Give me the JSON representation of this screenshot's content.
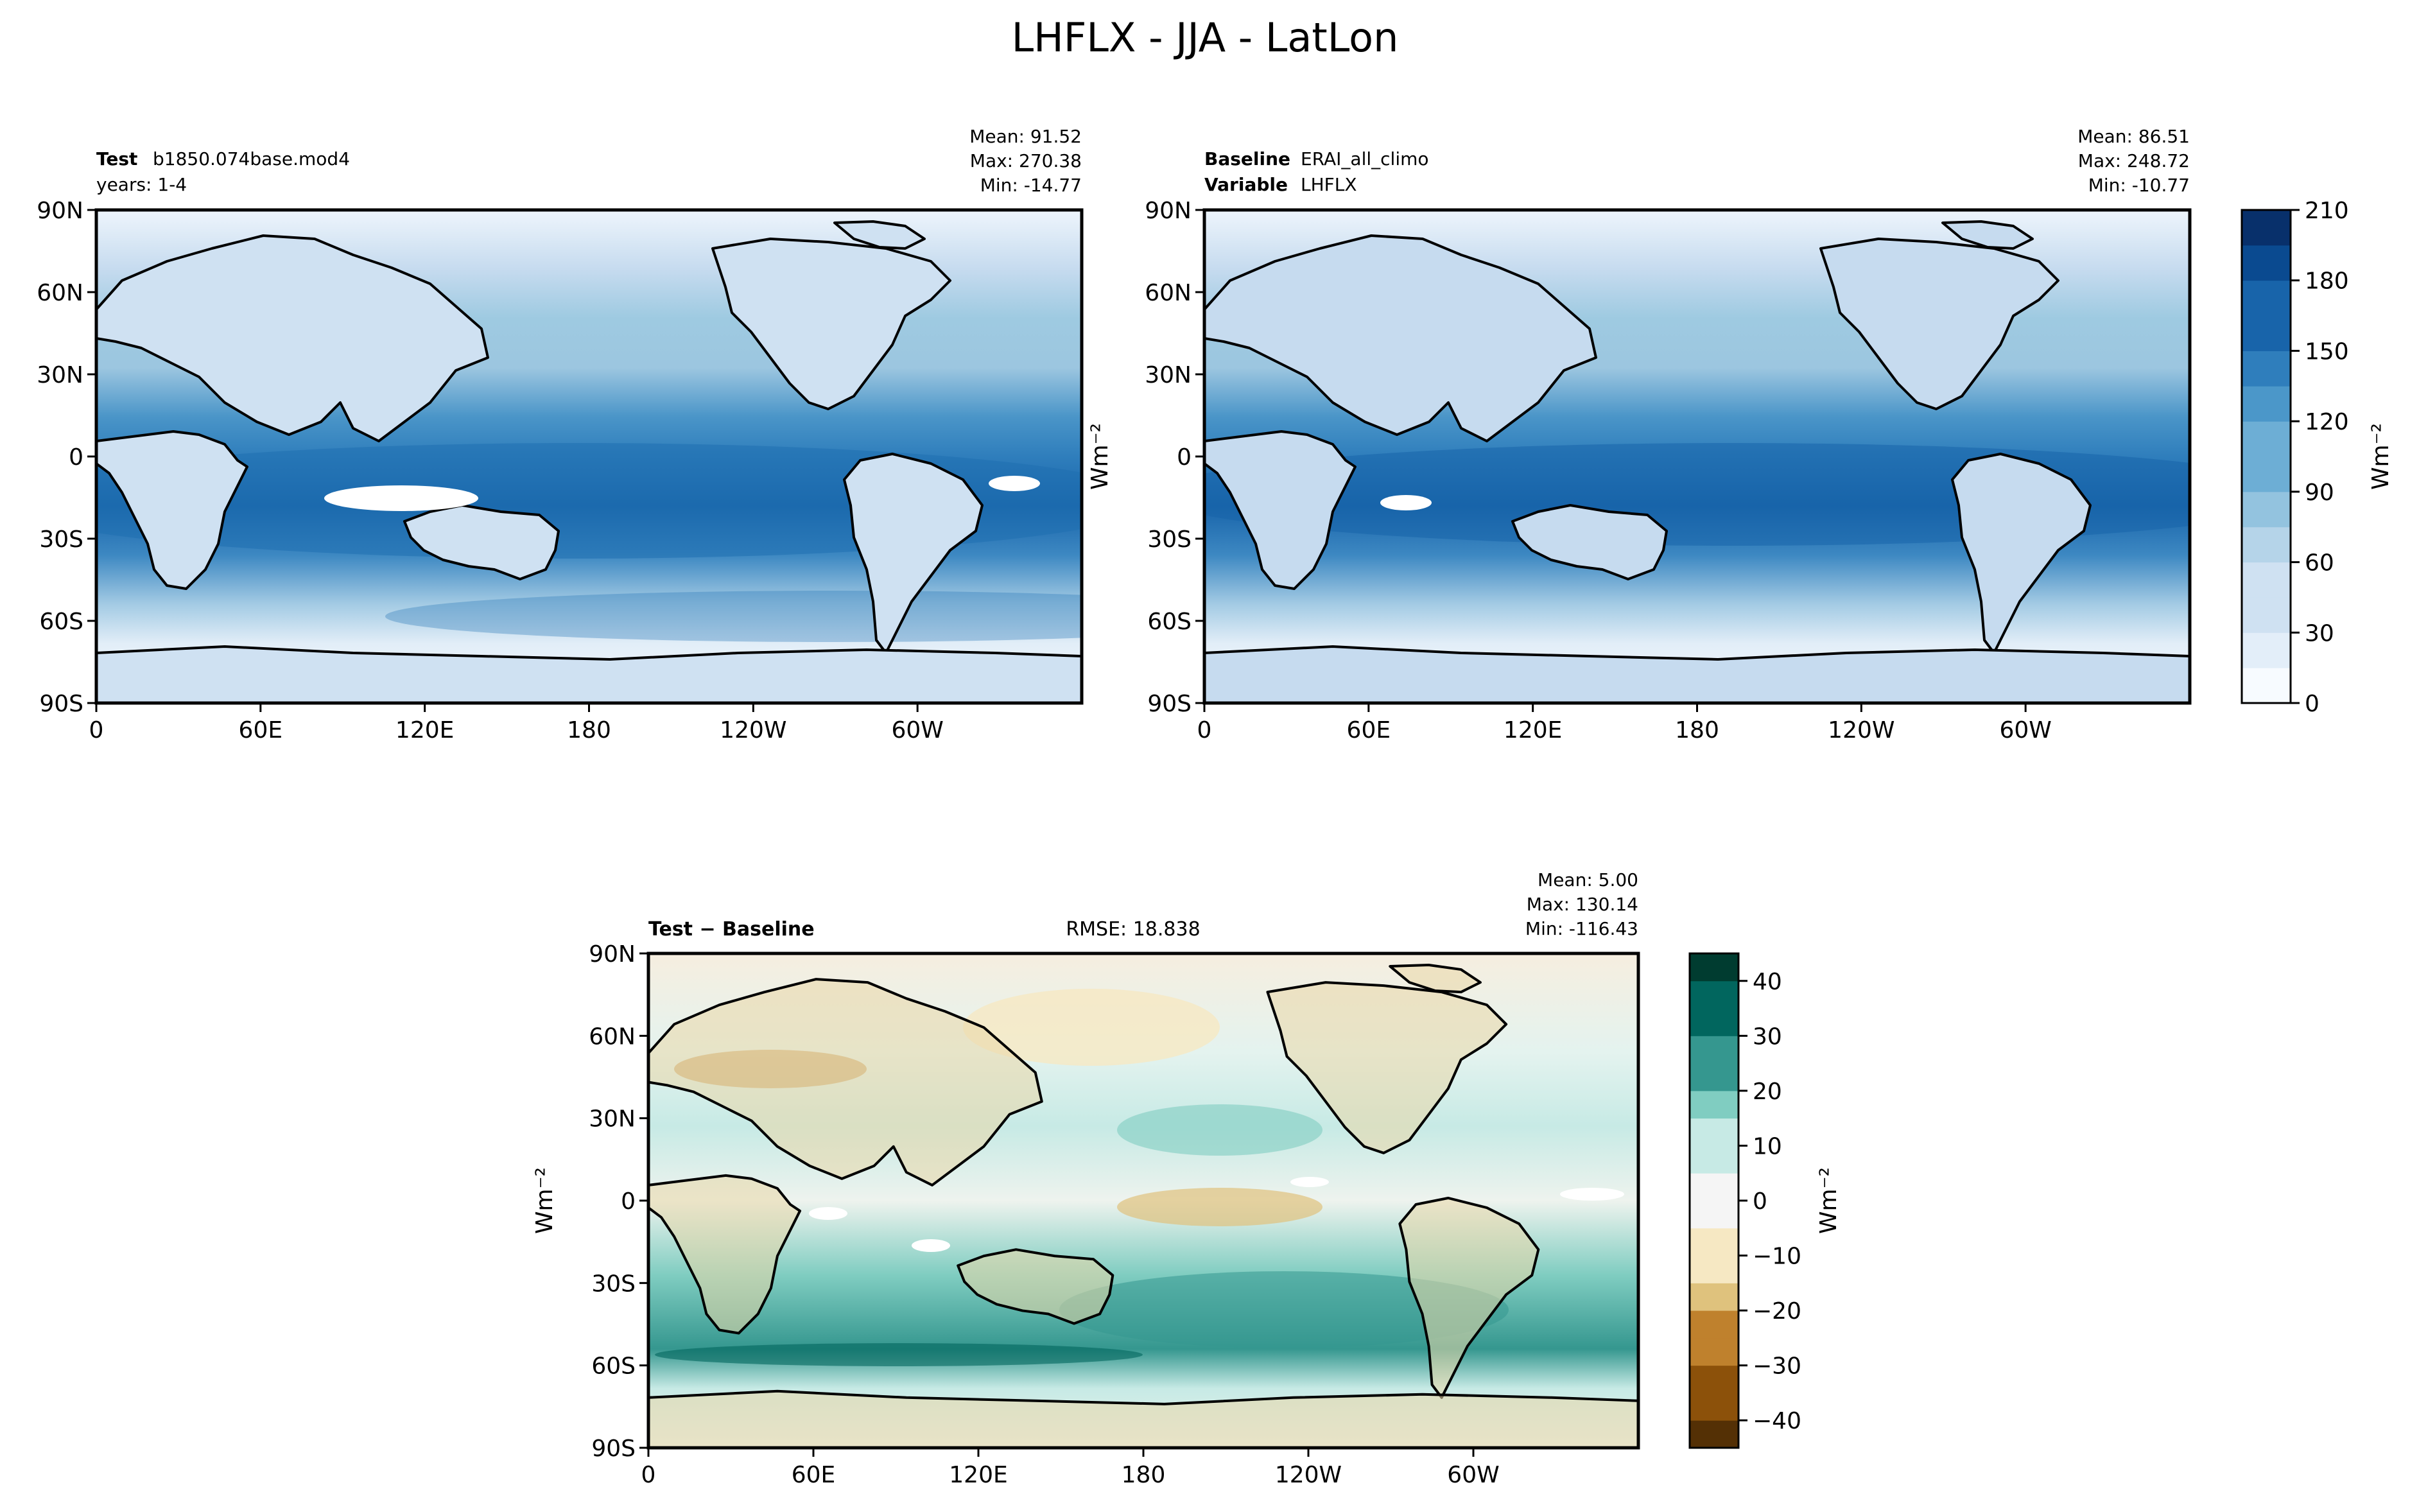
{
  "figure": {
    "title": "LHFLX - JJA - LatLon"
  },
  "test_panel": {
    "label_bold": "Test",
    "label_value": "b1850.074base.mod4",
    "years": "years: 1-4",
    "stats": {
      "mean": "Mean: 91.52",
      "max": "Max: 270.38",
      "min": "Min: -14.77"
    }
  },
  "baseline_panel": {
    "label_bold": "Baseline",
    "label_value": "ERAI_all_climo",
    "variable_bold": "Variable",
    "variable_value": "LHFLX",
    "stats": {
      "mean": "Mean: 86.51",
      "max": "Max: 248.72",
      "min": "Min: -10.77"
    }
  },
  "diff_panel": {
    "label": "Test − Baseline",
    "rmse": "RMSE: 18.838",
    "stats": {
      "mean": "Mean:  5.00",
      "max": "Max: 130.14",
      "min": "Min: -116.43"
    }
  },
  "colorbars": {
    "main": {
      "label": "Wm⁻²",
      "ticks": [
        "210",
        "180",
        "150",
        "120",
        "90",
        "60",
        "30",
        "0"
      ]
    },
    "diff": {
      "label": "Wm⁻²",
      "ticks": [
        "40",
        "30",
        "20",
        "10",
        "0",
        "−10",
        "−20",
        "−30",
        "−40"
      ]
    }
  },
  "side_labels": {
    "top_right_map": "Wm⁻²",
    "diff_map": "Wm⁻²"
  },
  "colors": {
    "blues": [
      "#f7fbff",
      "#e3eef9",
      "#cfe1f2",
      "#b5d4e9",
      "#93c3df",
      "#6daed5",
      "#4b97c9",
      "#2f7ebc",
      "#1864aa",
      "#0a4a90",
      "#08306b"
    ],
    "brbg": [
      "#543005",
      "#8c510a",
      "#bf812d",
      "#dfc27d",
      "#f6e8c3",
      "#f5f5f5",
      "#c7eae5",
      "#80cdc1",
      "#35978f",
      "#01665e",
      "#003c30"
    ]
  },
  "chart_data": [
    {
      "type": "heatmap",
      "name": "test",
      "title": "Test: b1850.074base.mod4",
      "variable": "LHFLX",
      "units": "Wm-2",
      "season": "JJA",
      "x_ticks": [
        "0",
        "60E",
        "120E",
        "180",
        "120W",
        "60W"
      ],
      "x_tick_values": [
        0,
        60,
        120,
        180,
        240,
        300
      ],
      "y_ticks": [
        "90N",
        "60N",
        "30N",
        "0",
        "30S",
        "60S",
        "90S"
      ],
      "y_tick_values": [
        90,
        60,
        30,
        0,
        -30,
        -60,
        -90
      ],
      "xlim": [
        0,
        360
      ],
      "ylim": [
        -90,
        90
      ],
      "clim": [
        0,
        210
      ],
      "mean": 91.52,
      "max": 270.38,
      "min": -14.77
    },
    {
      "type": "heatmap",
      "name": "baseline",
      "title": "Baseline: ERAI_all_climo",
      "variable": "LHFLX",
      "units": "Wm-2",
      "x_ticks": [
        "0",
        "60E",
        "120E",
        "180",
        "120W",
        "60W"
      ],
      "x_tick_values": [
        0,
        60,
        120,
        180,
        240,
        300
      ],
      "y_ticks": [
        "90N",
        "60N",
        "30N",
        "0",
        "30S",
        "60S",
        "90S"
      ],
      "y_tick_values": [
        90,
        60,
        30,
        0,
        -30,
        -60,
        -90
      ],
      "xlim": [
        0,
        360
      ],
      "ylim": [
        -90,
        90
      ],
      "clim": [
        0,
        210
      ],
      "mean": 86.51,
      "max": 248.72,
      "min": -10.77
    },
    {
      "type": "heatmap",
      "name": "difference",
      "title": "Test − Baseline",
      "units": "Wm-2",
      "x_ticks": [
        "0",
        "60E",
        "120E",
        "180",
        "120W",
        "60W"
      ],
      "x_tick_values": [
        0,
        60,
        120,
        180,
        240,
        300
      ],
      "y_ticks": [
        "90N",
        "60N",
        "30N",
        "0",
        "30S",
        "60S",
        "90S"
      ],
      "y_tick_values": [
        90,
        60,
        30,
        0,
        -30,
        -60,
        -90
      ],
      "xlim": [
        0,
        360
      ],
      "ylim": [
        -90,
        90
      ],
      "clim": [
        -45,
        45
      ],
      "mean": 5.0,
      "max": 130.14,
      "min": -116.43,
      "rmse": 18.838
    }
  ]
}
